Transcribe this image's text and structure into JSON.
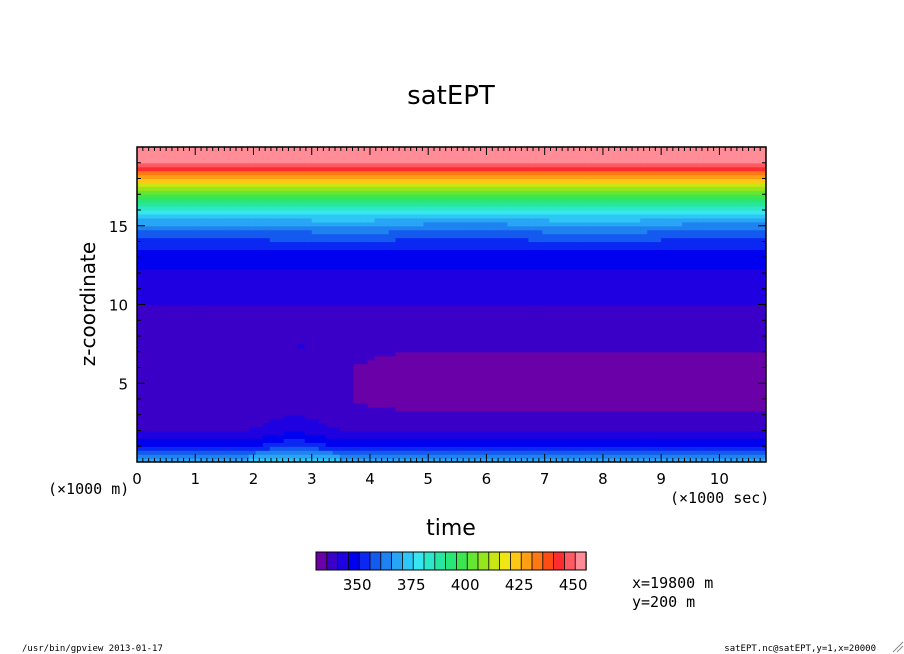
{
  "chart_data": {
    "type": "heatmap",
    "title": "satEPT",
    "xlabel": "time",
    "ylabel": "z-coordinate",
    "x_unit_label": "(×1000 sec)",
    "y_unit_label": "(×1000 m)",
    "xlim": [
      0,
      10.8
    ],
    "ylim": [
      0,
      20
    ],
    "x_ticks": [
      "0",
      "1",
      "2",
      "3",
      "4",
      "5",
      "6",
      "7",
      "8",
      "9",
      "10"
    ],
    "y_ticks": [
      "5",
      "10",
      "15"
    ],
    "colorbar": {
      "min": 330,
      "max": 450,
      "step": 5,
      "tick_labels": [
        "350",
        "375",
        "400",
        "425",
        "450"
      ],
      "colors": [
        "#6a00a8",
        "#3a00c8",
        "#1e00e0",
        "#0000f0",
        "#0a28f2",
        "#145aee",
        "#1e82f0",
        "#28a5f5",
        "#2dc8f5",
        "#37e6f0",
        "#2de8c8",
        "#28e6a0",
        "#28e678",
        "#3ce650",
        "#64e632",
        "#96e61e",
        "#c8e614",
        "#f0e614",
        "#ffc814",
        "#ffa014",
        "#ff7814",
        "#ff4b14",
        "#ff2d2d",
        "#ff5a64",
        "#ff8c96"
      ]
    },
    "annotations": [
      "x=19800 m",
      "y=200 m"
    ],
    "profile_z": [
      0,
      0.5,
      1,
      2,
      3,
      4,
      5,
      6,
      7,
      8,
      9,
      10,
      11,
      12,
      12.7,
      13.5,
      14.5,
      15.3,
      16,
      16.8,
      17.5,
      18,
      18.5,
      19,
      20
    ],
    "profile_value": [
      372,
      362,
      350,
      340,
      336,
      335,
      335,
      335,
      336,
      337,
      338,
      340,
      342,
      344,
      346,
      350,
      358,
      368,
      380,
      395,
      410,
      425,
      438,
      450,
      452
    ]
  },
  "footer": {
    "left": "/usr/bin/gpview  2013-01-17",
    "right": "satEPT.nc@satEPT,y=1,x=20000"
  }
}
